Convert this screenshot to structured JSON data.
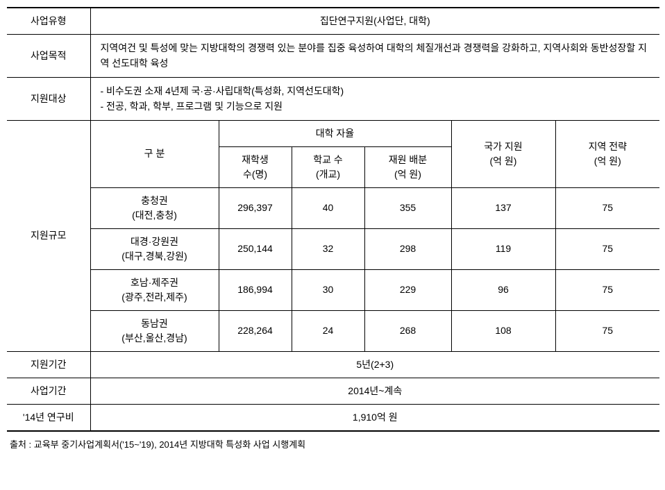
{
  "rows": {
    "type_label": "사업유형",
    "type_value": "집단연구지원(사업단, 대학)",
    "purpose_label": "사업목적",
    "purpose_value": "지역여건 및 특성에 맞는 지방대학의 경쟁력 있는 분야를 집중 육성하여 대학의 체질개선과 경쟁력을 강화하고, 지역사회와 동반성장할 지역 선도대학 육성",
    "target_label": "지원대상",
    "target_line1": "- 비수도권 소재 4년제 국·공·사립대학(특성화, 지역선도대학)",
    "target_line2": "- 전공, 학과, 학부, 프로그램 및 기능으로 지원",
    "scale_label": "지원규모",
    "period_support_label": "지원기간",
    "period_support_value": "5년(2+3)",
    "period_biz_label": "사업기간",
    "period_biz_value": "2014년~계속",
    "budget_label": "'14년 연구비",
    "budget_value": "1,910억 원"
  },
  "header": {
    "gubun": "구  분",
    "autonomy": "대학 자율",
    "national": "국가 지원",
    "national_unit": "(억 원)",
    "region_strat": "지역 전략",
    "region_strat_unit": "(억 원)",
    "students": "재학생",
    "students_unit": "수(명)",
    "schools": "학교 수",
    "schools_unit": "(개교)",
    "funding": "재원 배분",
    "funding_unit": "(억 원)"
  },
  "regions": [
    {
      "name": "충청권",
      "sub": "(대전,충청)",
      "students": "296,397",
      "schools": "40",
      "funding": "355",
      "national": "137",
      "strategy": "75"
    },
    {
      "name": "대경·강원권",
      "sub": "(대구,경북,강원)",
      "students": "250,144",
      "schools": "32",
      "funding": "298",
      "national": "119",
      "strategy": "75"
    },
    {
      "name": "호남·제주권",
      "sub": "(광주,전라,제주)",
      "students": "186,994",
      "schools": "30",
      "funding": "229",
      "national": "96",
      "strategy": "75"
    },
    {
      "name": "동남권",
      "sub": "(부산,울산,경남)",
      "students": "228,264",
      "schools": "24",
      "funding": "268",
      "national": "108",
      "strategy": "75"
    }
  ],
  "source": "출처 : 교육부 중기사업계획서('15~'19), 2014년 지방대학 특성화 사업 시행계획"
}
